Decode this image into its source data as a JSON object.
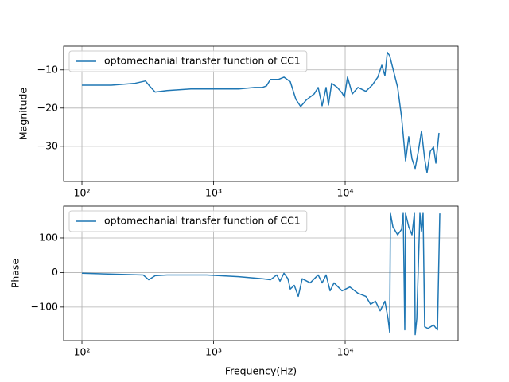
{
  "chart_data": [
    {
      "type": "line",
      "xscale": "log",
      "grid": true,
      "legend": "upper left",
      "ylabel": "Magnitude",
      "xlim": [
        72.6,
        72100
      ],
      "ylim": [
        -39.2,
        -3.8
      ],
      "xticks": [
        {
          "value": 100,
          "label": "10²"
        },
        {
          "value": 1000,
          "label": "10³"
        },
        {
          "value": 10000,
          "label": "10⁴"
        }
      ],
      "yticks": [
        {
          "value": -30,
          "label": "−30"
        },
        {
          "value": -20,
          "label": "−20"
        },
        {
          "value": -10,
          "label": "−10"
        }
      ],
      "x": [
        100,
        167,
        254,
        304,
        326,
        360,
        443,
        673,
        1021,
        1550,
        2048,
        2354,
        2523,
        2704,
        3106,
        3427,
        3828,
        4220,
        4590,
        5058,
        5810,
        6233,
        6680,
        7160,
        7466,
        7890,
        8710,
        9462,
        9862,
        10420,
        11330,
        12500,
        14360,
        16040,
        17690,
        18970,
        20050,
        20900,
        21790,
        25050,
        26850,
        28770,
        30410,
        32180,
        34040,
        35970,
        38020,
        40180,
        41880,
        44360,
        46880,
        48870,
        51640
      ],
      "series": [
        {
          "name": "optomechanial transfer function of CC1",
          "color": "#1f77b4",
          "values": [
            -14,
            -14,
            -13.5,
            -12.9,
            -14.2,
            -15.8,
            -15.4,
            -15,
            -15,
            -15,
            -14.6,
            -14.6,
            -14.2,
            -12.5,
            -12.5,
            -11.9,
            -13.1,
            -17.7,
            -19.6,
            -17.9,
            -16.3,
            -14.6,
            -19.4,
            -14.6,
            -19.2,
            -13.5,
            -14.6,
            -16,
            -17.1,
            -11.9,
            -16.3,
            -14.6,
            -15.6,
            -14,
            -11.9,
            -8.8,
            -11.5,
            -5.4,
            -6.3,
            -14.6,
            -22.5,
            -33.8,
            -27.5,
            -33.3,
            -35.8,
            -31.3,
            -26,
            -33.3,
            -36.9,
            -31.3,
            -30.2,
            -34.4,
            -26.5
          ]
        }
      ]
    },
    {
      "type": "line",
      "xscale": "log",
      "grid": true,
      "legend": "upper left",
      "xlabel": "Frequency(Hz)",
      "ylabel": "Phase",
      "xlim": [
        72.6,
        72100
      ],
      "ylim": [
        -197,
        192
      ],
      "xticks": [
        {
          "value": 100,
          "label": "10²"
        },
        {
          "value": 1000,
          "label": "10³"
        },
        {
          "value": 10000,
          "label": "10⁴"
        }
      ],
      "yticks": [
        {
          "value": -100,
          "label": "−100"
        },
        0,
        100
      ],
      "x": [
        100,
        292,
        322,
        360,
        443,
        889,
        1550,
        2048,
        2354,
        2704,
        3020,
        3198,
        3427,
        3673,
        3828,
        4103,
        4403,
        4718,
        5424,
        6233,
        6680,
        7160,
        7680,
        8230,
        9462,
        10860,
        12500,
        14360,
        15600,
        16980,
        18450,
        20050,
        21180,
        21790,
        22080,
        23050,
        25050,
        26850,
        27610,
        28380,
        28770,
        30410,
        32180,
        33580,
        34040,
        35000,
        36980,
        38020,
        39080,
        40180,
        42560,
        46880,
        50240,
        52360
      ],
      "series": [
        {
          "name": "optomechanial transfer function of CC1",
          "color": "#1f77b4",
          "values": [
            -2,
            -7,
            -21,
            -9,
            -7,
            -7,
            -12,
            -16,
            -18,
            -21,
            -7,
            -25,
            -2,
            -18,
            -48,
            -37,
            -69,
            -18,
            -30,
            -7,
            -30,
            -7,
            -53,
            -30,
            -53,
            -42,
            -60,
            -69,
            -92,
            -83,
            -111,
            -83,
            -134,
            -173,
            171,
            132,
            109,
            125,
            171,
            -166,
            171,
            132,
            109,
            171,
            -180,
            -134,
            171,
            120,
            171,
            -157,
            -162,
            -152,
            -166,
            171
          ]
        }
      ]
    }
  ]
}
